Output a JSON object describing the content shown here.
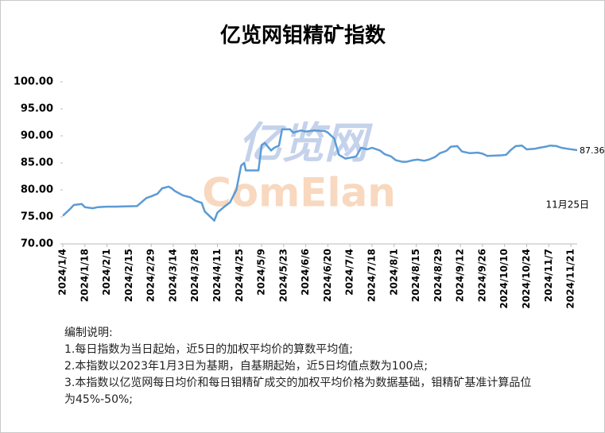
{
  "chart_data": {
    "type": "line",
    "title": "亿览网钼精矿指数",
    "watermark": [
      "亿览网",
      "ComElan"
    ],
    "annotation": "11月25日",
    "x": [
      "2024/1/4",
      "2024/1/8",
      "2024/1/11",
      "2024/1/16",
      "2024/1/18",
      "2024/1/23",
      "2024/1/26",
      "2024/2/1",
      "2024/2/6",
      "2024/2/20",
      "2024/2/26",
      "2024/2/29",
      "2024/3/4",
      "2024/3/7",
      "2024/3/11",
      "2024/3/13",
      "2024/3/15",
      "2024/3/20",
      "2024/3/25",
      "2024/3/28",
      "2024/4/1",
      "2024/4/3",
      "2024/4/8",
      "2024/4/9",
      "2024/4/11",
      "2024/4/15",
      "2024/4/19",
      "2024/4/23",
      "2024/4/26",
      "2024/4/28",
      "2024/4/29",
      "2024/5/7",
      "2024/5/9",
      "2024/5/11",
      "2024/5/15",
      "2024/5/17",
      "2024/5/20",
      "2024/5/22",
      "2024/5/27",
      "2024/5/29",
      "2024/6/3",
      "2024/6/6",
      "2024/6/11",
      "2024/6/18",
      "2024/6/20",
      "2024/6/24",
      "2024/6/27",
      "2024/7/1",
      "2024/7/5",
      "2024/7/8",
      "2024/7/11",
      "2024/7/15",
      "2024/7/18",
      "2024/7/23",
      "2024/7/26",
      "2024/7/30",
      "2024/8/2",
      "2024/8/6",
      "2024/8/9",
      "2024/8/13",
      "2024/8/16",
      "2024/8/20",
      "2024/8/23",
      "2024/8/27",
      "2024/8/30",
      "2024/9/3",
      "2024/9/6",
      "2024/9/10",
      "2024/9/13",
      "2024/9/18",
      "2024/9/23",
      "2024/9/26",
      "2024/9/29",
      "2024/10/8",
      "2024/10/11",
      "2024/10/14",
      "2024/10/17",
      "2024/10/21",
      "2024/10/24",
      "2024/10/29",
      "2024/11/1",
      "2024/11/5",
      "2024/11/8",
      "2024/11/12",
      "2024/11/15",
      "2024/11/19",
      "2024/11/25"
    ],
    "series": [
      {
        "name": "亿览网钼精矿指数",
        "color": "#5b9bd5",
        "values": [
          75.2,
          76.3,
          77.2,
          77.4,
          76.8,
          76.6,
          76.8,
          76.9,
          76.9,
          77.0,
          78.5,
          78.8,
          79.3,
          80.3,
          80.6,
          80.3,
          79.8,
          79.0,
          78.6,
          78.0,
          77.6,
          76.0,
          74.6,
          74.3,
          75.8,
          76.8,
          77.7,
          80.0,
          84.5,
          85.0,
          83.6,
          83.6,
          88.3,
          88.7,
          87.3,
          87.8,
          88.2,
          91.2,
          91.2,
          90.6,
          91.0,
          90.8,
          91.0,
          90.9,
          90.6,
          89.5,
          86.5,
          85.8,
          86.0,
          86.2,
          87.8,
          87.5,
          87.8,
          87.3,
          86.6,
          86.2,
          85.5,
          85.2,
          85.2,
          85.5,
          85.6,
          85.4,
          85.6,
          86.1,
          86.8,
          87.2,
          88.0,
          88.1,
          87.1,
          86.8,
          86.9,
          86.7,
          86.3,
          86.4,
          86.5,
          87.4,
          88.1,
          88.2,
          87.5,
          87.6,
          87.8,
          88.0,
          88.2,
          88.1,
          87.8,
          87.6,
          87.36
        ]
      }
    ],
    "xlim": [
      "2024/1/4",
      "2024/11/25"
    ],
    "xticks": [
      "2024/1/4",
      "2024/1/18",
      "2024/2/1",
      "2024/2/15",
      "2024/2/29",
      "2024/3/14",
      "2024/3/28",
      "2024/4/11",
      "2024/4/25",
      "2024/5/9",
      "2024/5/23",
      "2024/6/6",
      "2024/6/20",
      "2024/7/4",
      "2024/7/18",
      "2024/8/1",
      "2024/8/15",
      "2024/8/29",
      "2024/9/12",
      "2024/9/26",
      "2024/10/10",
      "2024/10/24",
      "2024/11/7",
      "2024/11/21"
    ],
    "ylim": [
      70,
      100
    ],
    "yticks": [
      {
        "value": 70,
        "label": "70.00"
      },
      {
        "value": 75,
        "label": "75.00"
      },
      {
        "value": 80,
        "label": "80.00"
      },
      {
        "value": 85,
        "label": "85.00"
      },
      {
        "value": 90,
        "label": "90.00"
      },
      {
        "value": 95,
        "label": "95.00"
      },
      {
        "value": 100,
        "label": "100.00"
      }
    ],
    "grid": false,
    "notes": [
      "编制说明:",
      "1.每日指数为当日起始，近5日的加权平均价的算数平均值;",
      "2.本指数以2023年1月3日为基期，自基期起始，近5日均值点数为100点;",
      "3.本指数以亿览网每日均价和每日钼精矿成交的加权平均价格为数据基础，钼精矿基准计算品位为45%-50%;"
    ]
  }
}
